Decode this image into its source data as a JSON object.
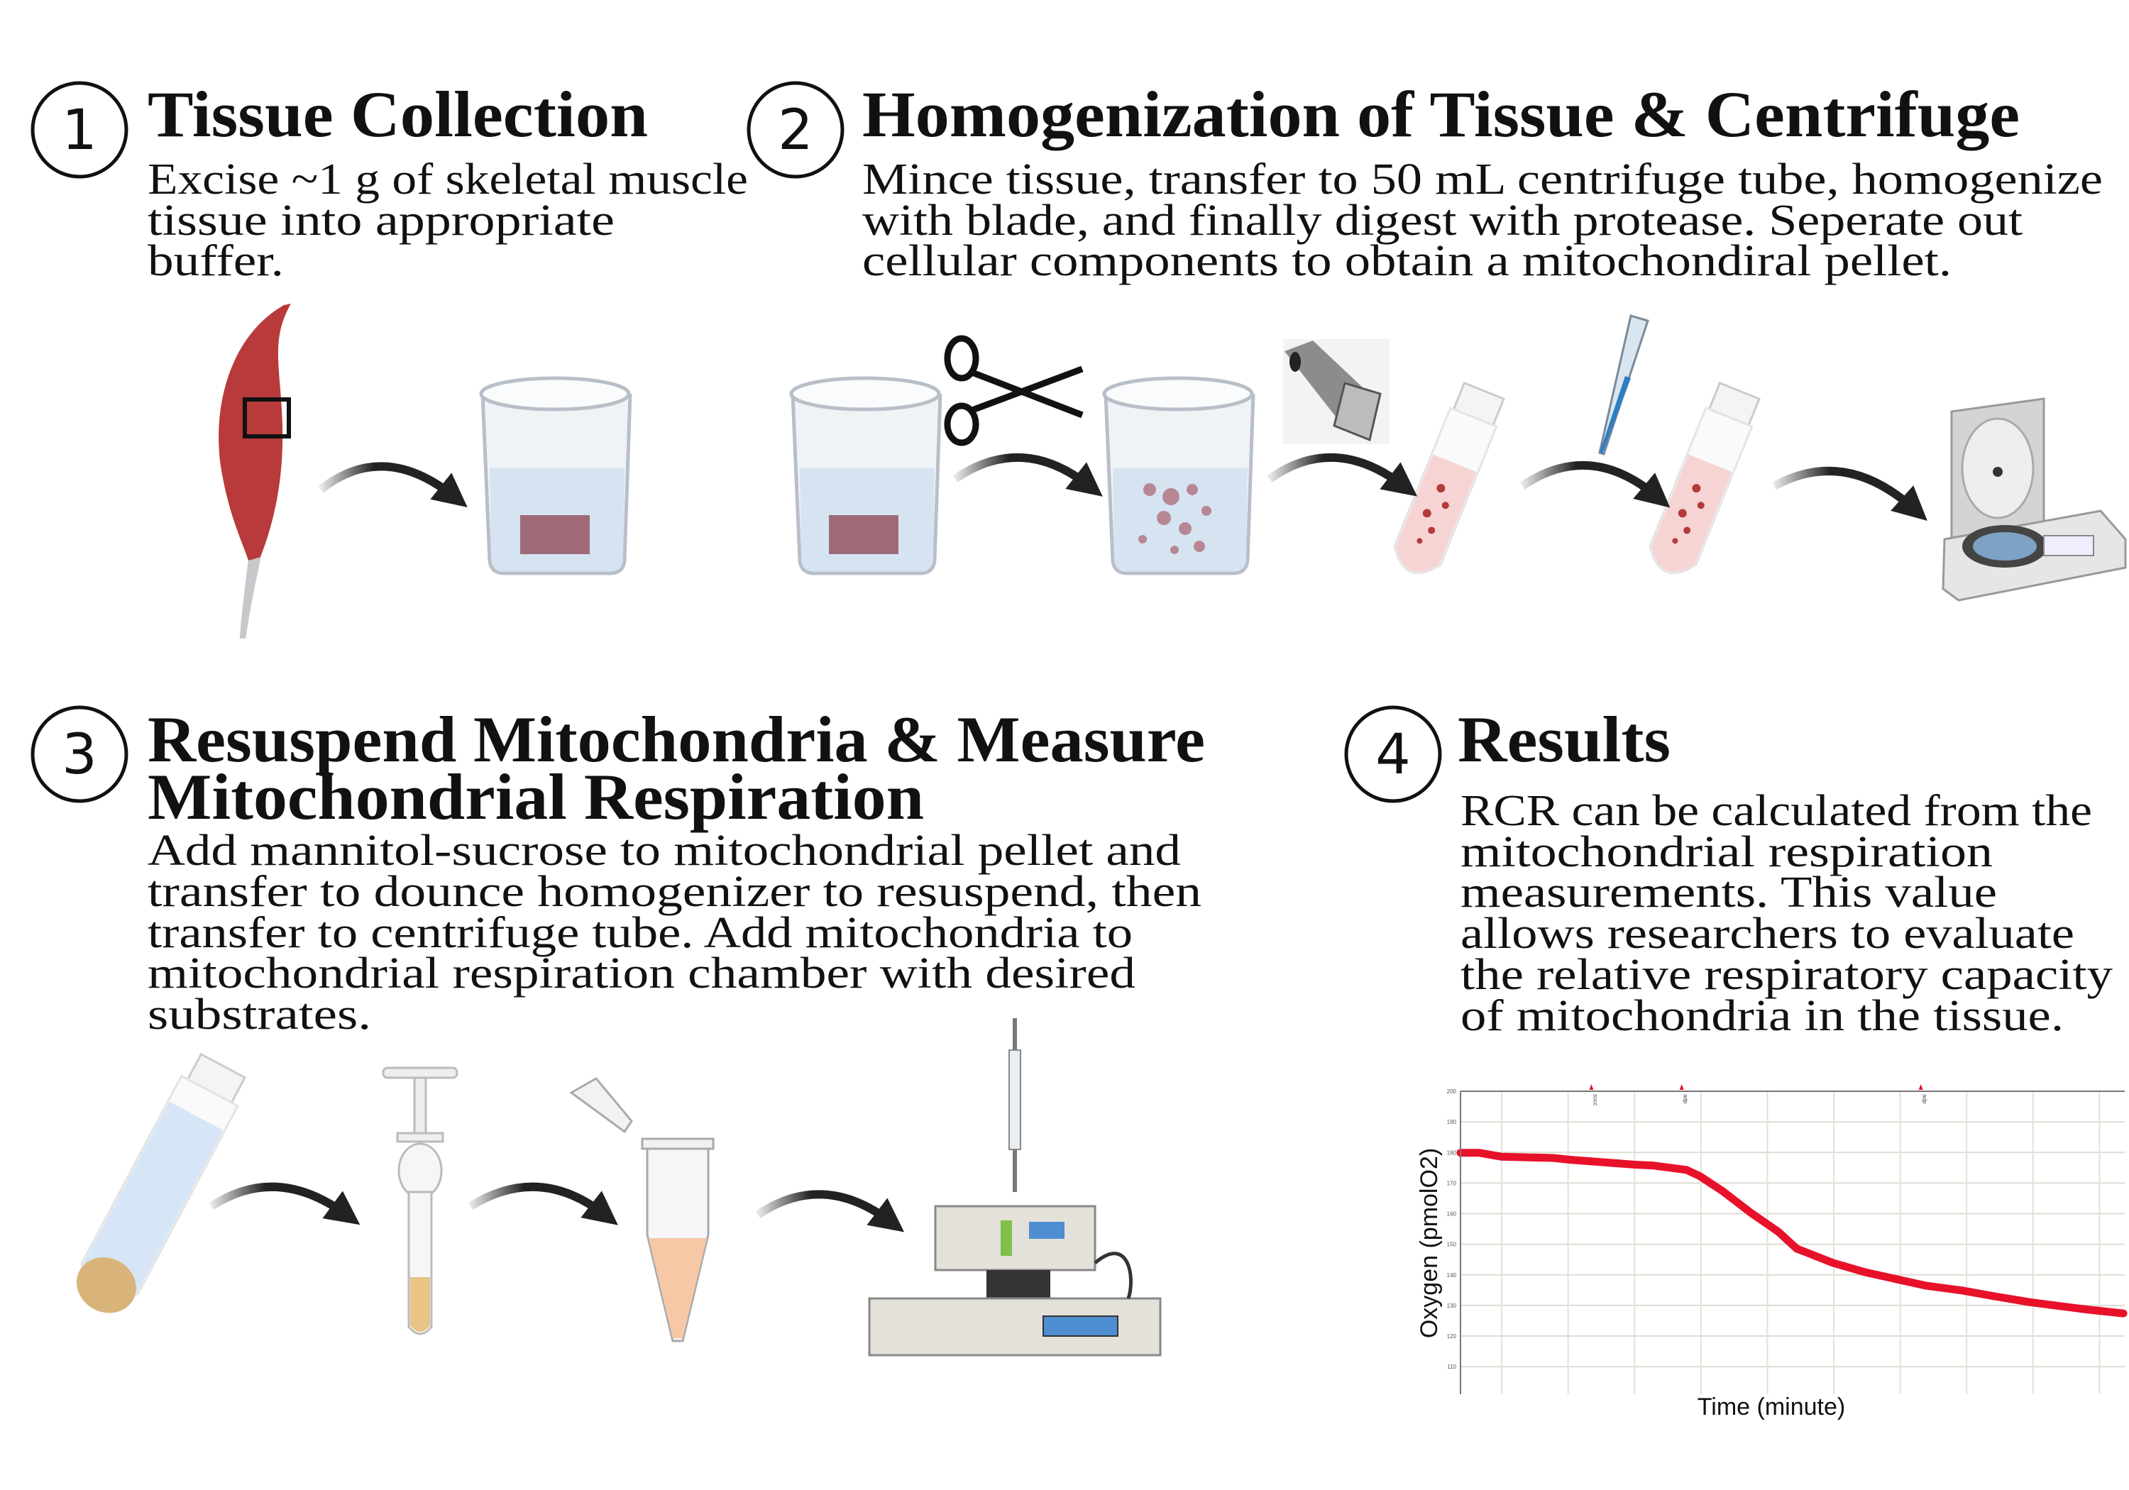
{
  "steps": [
    {
      "number": "1",
      "title": [
        "Tissue Collection"
      ],
      "body": [
        "Excise ~1 g of skeletal muscle",
        "tissue into appropriate",
        "buffer."
      ]
    },
    {
      "number": "2",
      "title": [
        "Homogenization of Tissue & Centrifuge"
      ],
      "body": [
        "Mince tissue, transfer to 50 mL centrifuge tube, homogenize",
        "with blade, and finally digest with protease. Seperate out",
        "cellular components to obtain a mitochondiral pellet."
      ]
    },
    {
      "number": "3",
      "title": [
        "Resuspend Mitochondria & Measure",
        "Mitochondrial Respiration"
      ],
      "body": [
        "Add mannitol-sucrose to mitochondrial pellet and",
        "transfer to dounce homogenizer to resuspend, then",
        "transfer to centrifuge tube. Add mitochondria to",
        "mitochondrial respiration chamber with desired",
        "substrates."
      ]
    },
    {
      "number": "4",
      "title": [
        "Results"
      ],
      "body": [
        "RCR can be calculated from the",
        "mitochondrial respiration",
        "measurements. This value",
        "allows researchers to evaluate",
        "the relative respiratory capacity",
        "of mitochondria in the tissue."
      ]
    }
  ],
  "icons": [
    "muscle",
    "beaker-with-tissue",
    "scissors",
    "beaker-with-minced-tissue",
    "blade-homogenizer",
    "centrifuge-tube",
    "pipette",
    "centrifuge",
    "tube-with-pellet",
    "dounce-homogenizer",
    "microcentrifuge-tube",
    "respirometer"
  ],
  "chart_data": {
    "type": "line",
    "xlabel": "Time (minute)",
    "ylabel": "Oxygen (pmolO2)",
    "ylim": [
      101,
      200
    ],
    "yticks": [
      110,
      120,
      130,
      140,
      150,
      160,
      170,
      180,
      190,
      200
    ],
    "grid": true,
    "line_color": "#e8112a",
    "x": [
      0,
      0.28,
      0.62,
      1.39,
      1.66,
      2.63,
      2.91,
      3.4,
      3.6,
      3.95,
      4.37,
      4.79,
      5.06,
      5.61,
      6.1,
      7.0,
      7.55,
      8.04,
      8.59,
      9.42,
      9.98
    ],
    "y": [
      179.9,
      179.9,
      178.6,
      178.2,
      177.6,
      176.0,
      175.7,
      174.3,
      172.3,
      167.3,
      160.3,
      154.0,
      148.6,
      143.9,
      140.8,
      136.5,
      134.9,
      133.0,
      131.0,
      128.7,
      127.4
    ],
    "markers": [
      {
        "x": 1.97,
        "label": "succ"
      },
      {
        "x": 3.33,
        "label": "adp"
      },
      {
        "x": 6.93,
        "label": "adp"
      }
    ]
  }
}
